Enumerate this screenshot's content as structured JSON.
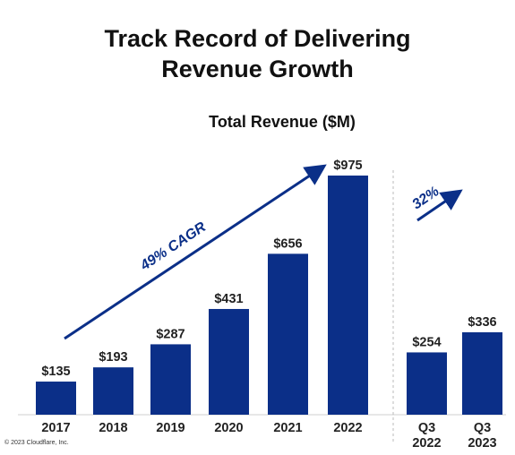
{
  "header": {
    "title_line1": "Track Record of Delivering",
    "title_line2": "Revenue Growth"
  },
  "footer": {
    "copyright": "© 2023 Cloudflare, Inc."
  },
  "colors": {
    "bar": "#0b2f88",
    "arrow": "#0b2f88",
    "text": "#222222",
    "divider": "#bbbbbb"
  },
  "chart_data": {
    "type": "bar",
    "title": "Total Revenue ($M)",
    "unit": "$M",
    "groups": [
      {
        "name": "annual",
        "categories": [
          [
            "2017"
          ],
          [
            "2018"
          ],
          [
            "2019"
          ],
          [
            "2020"
          ],
          [
            "2021"
          ],
          [
            "2022"
          ]
        ],
        "values": [
          135,
          193,
          287,
          431,
          656,
          975
        ],
        "labels": [
          "$135",
          "$193",
          "$287",
          "$431",
          "$656",
          "$975"
        ]
      },
      {
        "name": "quarterly",
        "categories": [
          [
            "Q3",
            "2022"
          ],
          [
            "Q3",
            "2023"
          ]
        ],
        "values": [
          254,
          336
        ],
        "labels": [
          "$254",
          "$336"
        ]
      }
    ],
    "annotations": [
      {
        "text": "49% CAGR",
        "from": "2017",
        "to": "2022"
      },
      {
        "text": "32%",
        "from": "Q3 2022",
        "to": "Q3 2023"
      }
    ],
    "ylim": [
      0,
      975
    ],
    "grid": false,
    "legend": "none"
  }
}
